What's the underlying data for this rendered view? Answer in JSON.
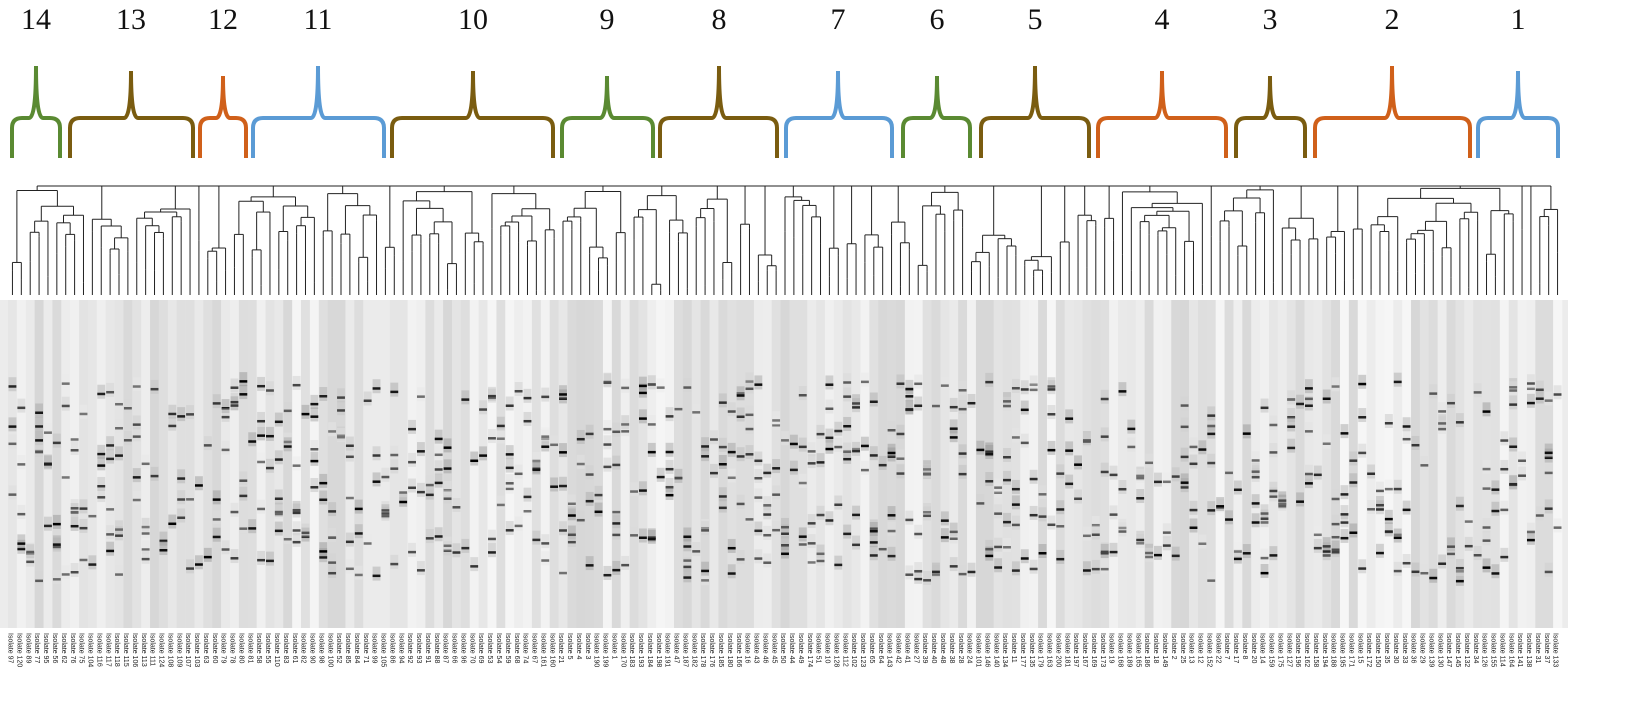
{
  "clusters": [
    {
      "label": "14",
      "color": "#5a8a32"
    },
    {
      "label": "13",
      "color": "#7a5c10"
    },
    {
      "label": "12",
      "color": "#d0601a"
    },
    {
      "label": "11",
      "color": "#5b9bd5"
    },
    {
      "label": "10",
      "color": "#7a5c10"
    },
    {
      "label": "9",
      "color": "#5a8a32"
    },
    {
      "label": "8",
      "color": "#7a5c10"
    },
    {
      "label": "7",
      "color": "#5b9bd5"
    },
    {
      "label": "6",
      "color": "#5a8a32"
    },
    {
      "label": "5",
      "color": "#7a5c10"
    },
    {
      "label": "4",
      "color": "#d0601a"
    },
    {
      "label": "3",
      "color": "#7a5c10"
    },
    {
      "label": "2",
      "color": "#d0601a"
    },
    {
      "label": "1",
      "color": "#5b9bd5"
    }
  ],
  "isolates": [
    "Isolate 97",
    "Isolate 120",
    "Isolate 89",
    "Isolate 77",
    "Isolate 95",
    "Isolate 56",
    "Isolate 62",
    "Isolate 76",
    "Isolate 75",
    "Isolate 104",
    "Isolate 116",
    "Isolate 117",
    "Isolate 118",
    "Isolate 115",
    "Isolate 106",
    "Isolate 113",
    "Isolate 111",
    "Isolate 124",
    "Isolate 108",
    "Isolate 109",
    "Isolate 107",
    "Isolate 103",
    "Isolate 63",
    "Isolate 60",
    "Isolate 79",
    "Isolate 78",
    "Isolate 80",
    "Isolate 81",
    "Isolate 58",
    "Isolate 55",
    "Isolate 110",
    "Isolate 83",
    "Isolate 61",
    "Isolate 82",
    "Isolate 90",
    "Isolate 98",
    "Isolate 100",
    "Isolate 52",
    "Isolate 85",
    "Isolate 84",
    "Isolate 71",
    "Isolate 99",
    "Isolate 105",
    "Isolate 86",
    "Isolate 94",
    "Isolate 92",
    "Isolate 93",
    "Isolate 91",
    "Isolate 88",
    "Isolate 87",
    "Isolate 66",
    "Isolate 96",
    "Isolate 70",
    "Isolate 69",
    "Isolate 53",
    "Isolate 54",
    "Isolate 59",
    "Isolate 68",
    "Isolate 74",
    "Isolate 67",
    "Isolate 161",
    "Isolate 160",
    "Isolate 21",
    "Isolate 5",
    "Isolate 4",
    "Isolate 3",
    "Isolate 190",
    "Isolate 199",
    "Isolate 1",
    "Isolate 170",
    "Isolate 183",
    "Isolate 193",
    "Isolate 184",
    "Isolate 198",
    "Isolate 191",
    "Isolate 47",
    "Isolate 187",
    "Isolate 182",
    "Isolate 178",
    "Isolate 176",
    "Isolate 185",
    "Isolate 180",
    "Isolate 166",
    "Isolate 16",
    "Isolate 43",
    "Isolate 46",
    "Isolate 45",
    "Isolate 50",
    "Isolate 44",
    "Isolate 49",
    "Isolate 174",
    "Isolate 51",
    "Isolate 10",
    "Isolate 128",
    "Isolate 112",
    "Isolate 102",
    "Isolate 123",
    "Isolate 65",
    "Isolate 64",
    "Isolate 143",
    "Isolate 42",
    "Isolate 41",
    "Isolate 27",
    "Isolate 39",
    "Isolate 40",
    "Isolate 48",
    "Isolate 38",
    "Isolate 28",
    "Isolate 24",
    "Isolate 101",
    "Isolate 146",
    "Isolate 140",
    "Isolate 134",
    "Isolate 11",
    "Isolate 177",
    "Isolate 135",
    "Isolate 179",
    "Isolate 163",
    "Isolate 200",
    "Isolate 181",
    "Isolate 197",
    "Isolate 167",
    "Isolate 169",
    "Isolate 173",
    "Isolate 19",
    "Isolate 168",
    "Isolate 189",
    "Isolate 165",
    "Isolate 186",
    "Isolate 18",
    "Isolate 149",
    "Isolate 2",
    "Isolate 25",
    "Isolate 13",
    "Isolate 12",
    "Isolate 152",
    "Isolate 22",
    "Isolate 7",
    "Isolate 17",
    "Isolate 8",
    "Isolate 20",
    "Isolate 14",
    "Isolate 159",
    "Isolate 175",
    "Isolate 127",
    "Isolate 196",
    "Isolate 162",
    "Isolate 158",
    "Isolate 194",
    "Isolate 188",
    "Isolate 195",
    "Isolate 171",
    "Isolate 15",
    "Isolate 172",
    "Isolate 150",
    "Isolate 35",
    "Isolate 30",
    "Isolate 33",
    "Isolate 36",
    "Isolate 29",
    "Isolate 139",
    "Isolate 130",
    "Isolate 147",
    "Isolate 145",
    "Isolate 132",
    "Isolate 34",
    "Isolate 126",
    "Isolate 155",
    "Isolate 114",
    "Isolate 164",
    "Isolate 141",
    "Isolate 138",
    "Isolate 31",
    "Isolate 37",
    "Isolate 133"
  ]
}
